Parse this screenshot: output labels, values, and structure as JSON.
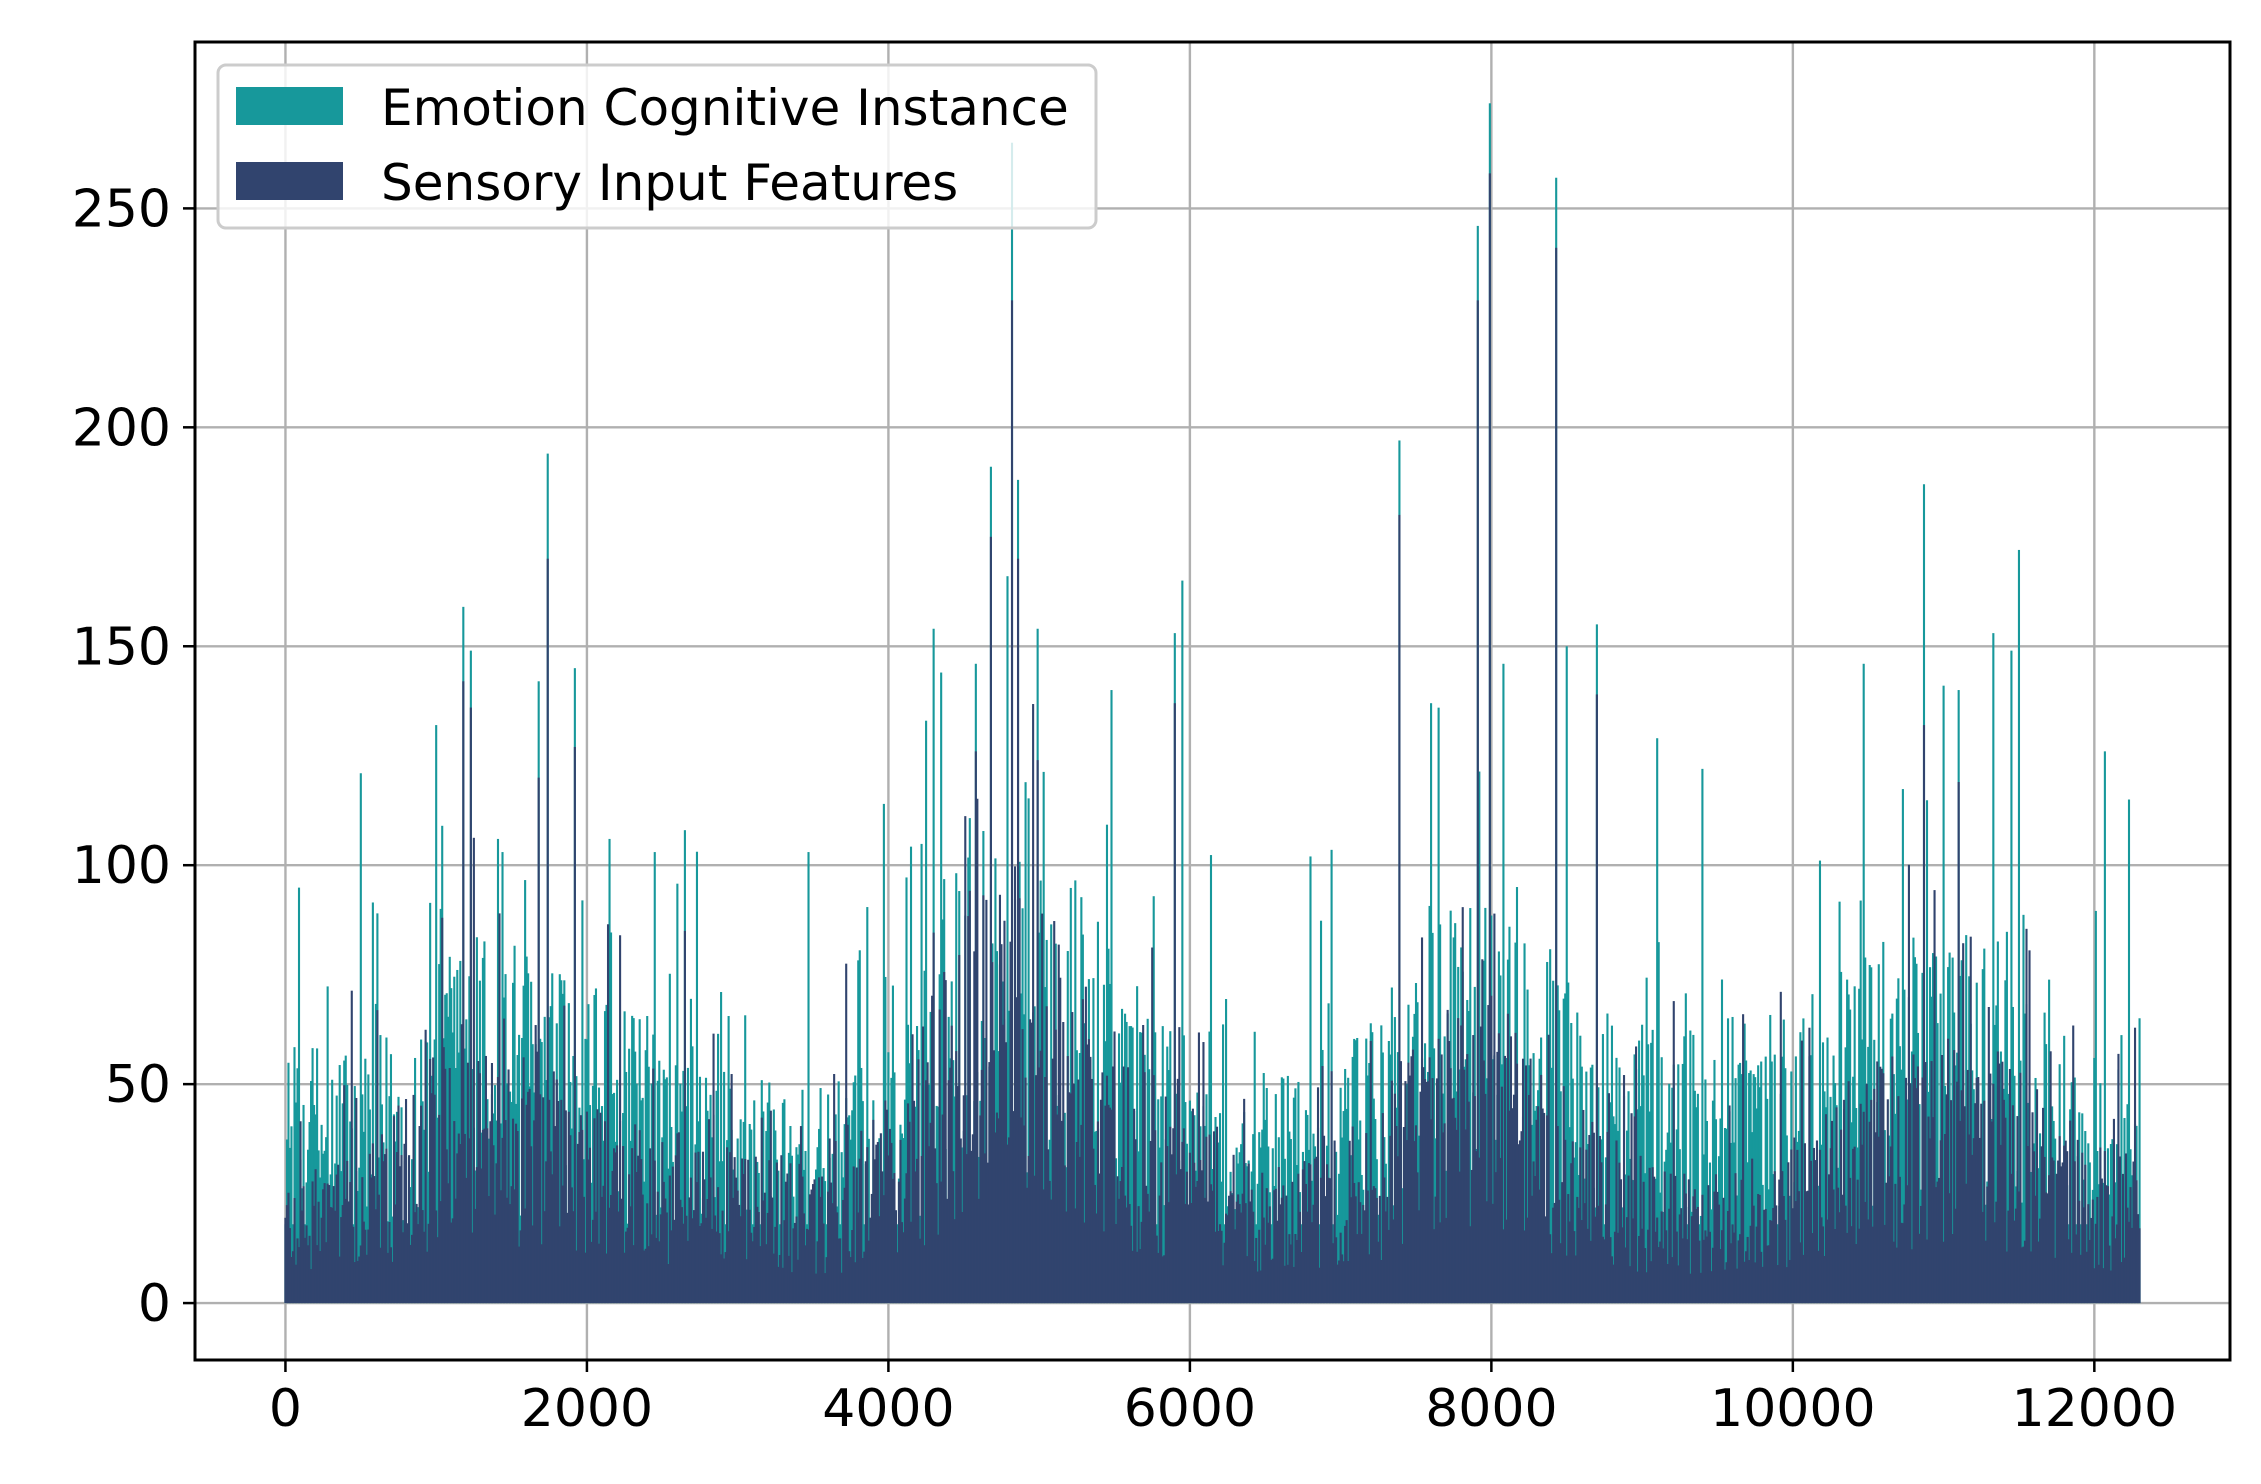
{
  "chart_data": {
    "type": "bar",
    "title": "",
    "xlabel": "",
    "ylabel": "",
    "xlim": [
      -600,
      12900
    ],
    "ylim": [
      -13,
      288
    ],
    "grid": true,
    "legend_position": "top-left",
    "x_ticks": [
      0,
      2000,
      4000,
      6000,
      8000,
      10000,
      12000
    ],
    "x_tick_labels": [
      "0",
      "2000",
      "4000",
      "6000",
      "8000",
      "10000",
      "12000"
    ],
    "y_ticks": [
      0,
      50,
      100,
      150,
      200,
      250
    ],
    "y_tick_labels": [
      "0",
      "50",
      "100",
      "150",
      "200",
      "250"
    ],
    "x_range_data": [
      0,
      12300
    ],
    "bin_width": 10,
    "series": [
      {
        "name": "Emotion Cognitive Instance",
        "color": "#17989b",
        "baseline": 18,
        "peaks": [
          [
            500,
            121
          ],
          [
            610,
            89
          ],
          [
            1000,
            132
          ],
          [
            1040,
            109
          ],
          [
            1180,
            159
          ],
          [
            1230,
            149
          ],
          [
            1410,
            106
          ],
          [
            1440,
            103
          ],
          [
            1680,
            142
          ],
          [
            1740,
            194
          ],
          [
            1920,
            145
          ],
          [
            2150,
            106
          ],
          [
            2450,
            103
          ],
          [
            2650,
            108
          ],
          [
            3470,
            103
          ],
          [
            3970,
            114
          ],
          [
            4250,
            133
          ],
          [
            4300,
            154
          ],
          [
            4350,
            144
          ],
          [
            4580,
            146
          ],
          [
            4680,
            191
          ],
          [
            4790,
            166
          ],
          [
            4820,
            265
          ],
          [
            4860,
            188
          ],
          [
            4990,
            154
          ],
          [
            5480,
            140
          ],
          [
            5900,
            153
          ],
          [
            5950,
            165
          ],
          [
            6800,
            102
          ],
          [
            7390,
            197
          ],
          [
            7600,
            137
          ],
          [
            7910,
            246
          ],
          [
            7990,
            274
          ],
          [
            8080,
            146
          ],
          [
            8430,
            257
          ],
          [
            8500,
            150
          ],
          [
            8700,
            155
          ],
          [
            9100,
            129
          ],
          [
            9400,
            122
          ],
          [
            10470,
            146
          ],
          [
            10870,
            187
          ],
          [
            11000,
            141
          ],
          [
            11100,
            140
          ],
          [
            11330,
            153
          ],
          [
            11450,
            149
          ],
          [
            11500,
            172
          ],
          [
            12070,
            126
          ],
          [
            12230,
            115
          ]
        ]
      },
      {
        "name": "Sensory Input Features",
        "color": "#31446e",
        "baseline": 0,
        "peaks": [
          [
            1040,
            88
          ],
          [
            1180,
            142
          ],
          [
            1230,
            136
          ],
          [
            1420,
            89
          ],
          [
            1680,
            120
          ],
          [
            1740,
            170
          ],
          [
            1920,
            127
          ],
          [
            2220,
            84
          ],
          [
            2650,
            85
          ],
          [
            4580,
            126
          ],
          [
            4680,
            175
          ],
          [
            4820,
            229
          ],
          [
            4860,
            170
          ],
          [
            4990,
            124
          ],
          [
            5900,
            137
          ],
          [
            7390,
            180
          ],
          [
            7910,
            229
          ],
          [
            7990,
            258
          ],
          [
            8430,
            241
          ],
          [
            8700,
            139
          ],
          [
            10870,
            132
          ],
          [
            11100,
            119
          ]
        ]
      }
    ]
  }
}
